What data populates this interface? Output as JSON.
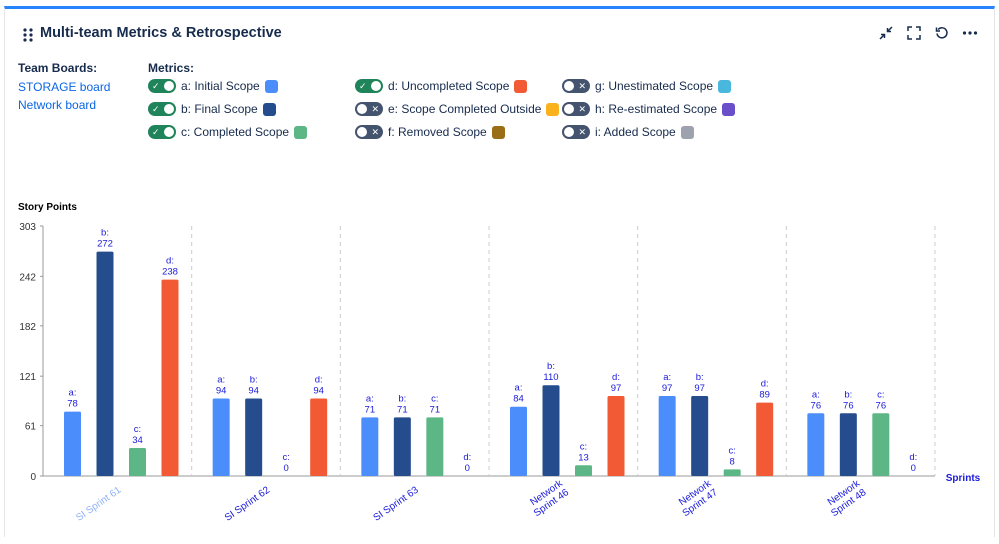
{
  "header": {
    "title": "Multi-team Metrics & Retrospective",
    "actions": [
      "minimize-icon",
      "fullscreen-icon",
      "refresh-icon",
      "more-icon"
    ]
  },
  "team_boards": {
    "label": "Team Boards:",
    "boards": [
      "STORAGE board",
      "Network board"
    ]
  },
  "metrics": {
    "label": "Metrics:",
    "items": [
      {
        "label": "a: Initial Scope",
        "on": true,
        "color": "#4c8dfc"
      },
      {
        "label": "b: Final Scope",
        "on": true,
        "color": "#254c8c"
      },
      {
        "label": "c: Completed Scope",
        "on": true,
        "color": "#5db685"
      },
      {
        "label": "d: Uncompleted Scope",
        "on": true,
        "color": "#f15a35"
      },
      {
        "label": "e: Scope Completed Outside",
        "on": false,
        "color": "#f9b21b"
      },
      {
        "label": "f: Removed Scope",
        "on": false,
        "color": "#9a6e17"
      },
      {
        "label": "g: Unestimated Scope",
        "on": false,
        "color": "#49b8dc"
      },
      {
        "label": "h: Re-estimated Scope",
        "on": false,
        "color": "#6a4fc9"
      },
      {
        "label": "i: Added Scope",
        "on": false,
        "color": "#9da2ae"
      }
    ]
  },
  "chart_data": {
    "type": "bar",
    "ylabel": "Story Points",
    "xlabel": "Sprints",
    "ylim": [
      0,
      303
    ],
    "yticks": [
      0,
      61,
      121,
      182,
      242,
      303
    ],
    "categories": [
      "SI Sprint 61",
      "SI Sprint 62",
      "SI Sprint 63",
      "Network Sprint 46",
      "Network Sprint 47",
      "Network Sprint 48"
    ],
    "category_label_lines": [
      [
        "SI Sprint 61"
      ],
      [
        "SI Sprint 62"
      ],
      [
        "SI Sprint 63"
      ],
      [
        "Network",
        "Sprint 46"
      ],
      [
        "Network",
        "Sprint 47"
      ],
      [
        "Network",
        "Sprint 48"
      ]
    ],
    "highlighted_category": "SI Sprint 61",
    "series": [
      {
        "key": "a",
        "name": "Initial Scope",
        "color": "#4c8dfc",
        "values": [
          78,
          94,
          71,
          84,
          97,
          76
        ]
      },
      {
        "key": "b",
        "name": "Final Scope",
        "color": "#254c8c",
        "values": [
          272,
          94,
          71,
          110,
          97,
          76
        ]
      },
      {
        "key": "c",
        "name": "Completed Scope",
        "color": "#5db685",
        "values": [
          34,
          0,
          71,
          13,
          8,
          76
        ]
      },
      {
        "key": "d",
        "name": "Uncompleted Scope",
        "color": "#f15a35",
        "values": [
          238,
          94,
          0,
          97,
          89,
          0
        ]
      }
    ],
    "label_color": "#1a1adb",
    "grid": "vertical-dashed"
  }
}
